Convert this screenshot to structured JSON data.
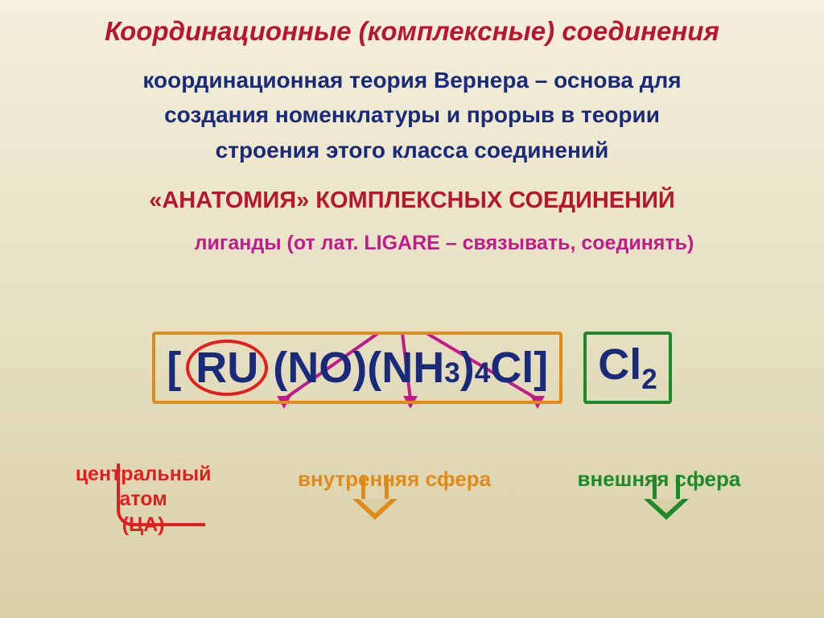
{
  "background_gradient": {
    "from": "#f4f0dc",
    "to": "#d9d0a8"
  },
  "title": {
    "text": "Координационные (комплексные) соединения",
    "color": "#b8162e",
    "fontsize": 33
  },
  "subtitle": {
    "text_line1": "координационная теория Вернера – основа для",
    "text_line2": "создания номенклатуры и прорыв в теории",
    "text_line3": "строения этого класса соединений",
    "color": "#1a2a7a",
    "fontsize": 28
  },
  "section_header": {
    "text": "«АНАТОМИЯ» КОМПЛЕКСНЫХ СОЕДИНЕНИЙ",
    "color": "#b8162e",
    "fontsize": 29
  },
  "ligand_label": {
    "text": "лиганды (от лат. LIGARE – связывать, соединять)",
    "color": "#c01b8a",
    "fontsize": 25,
    "arrow_color": "#c01b8a"
  },
  "formula": {
    "bracket_open": "[",
    "ru": "RU",
    "no": "(NO)",
    "nh3": "(NH",
    "nh3_sub": "3",
    "nh3_close": ")",
    "four_sub": "4",
    "cl_inner": "Cl]",
    "cl_outer": "Cl",
    "two_sub": "2",
    "color": "#1a2a7a",
    "fontsize": 54,
    "ru_circle_color": "#e02020",
    "inner_border_color": "#e08a1a",
    "outer_border_color": "#1a8a2a"
  },
  "labels": {
    "central_atom_line1": "центральный",
    "central_atom_line2": "атом",
    "central_atom_line3": "(ЦА)",
    "central_atom_color": "#e02020",
    "central_atom_fontsize": 25,
    "inner_sphere": "внутренняя сфера",
    "inner_sphere_color": "#e08a1a",
    "inner_sphere_fontsize": 26,
    "outer_sphere": "внешняя сфера",
    "outer_sphere_color": "#1a8a2a",
    "outer_sphere_fontsize": 26
  },
  "arrows": {
    "inner_arrow_color": "#e08a1a",
    "outer_arrow_color": "#1a8a2a",
    "ru_connector_color": "#e02020"
  }
}
